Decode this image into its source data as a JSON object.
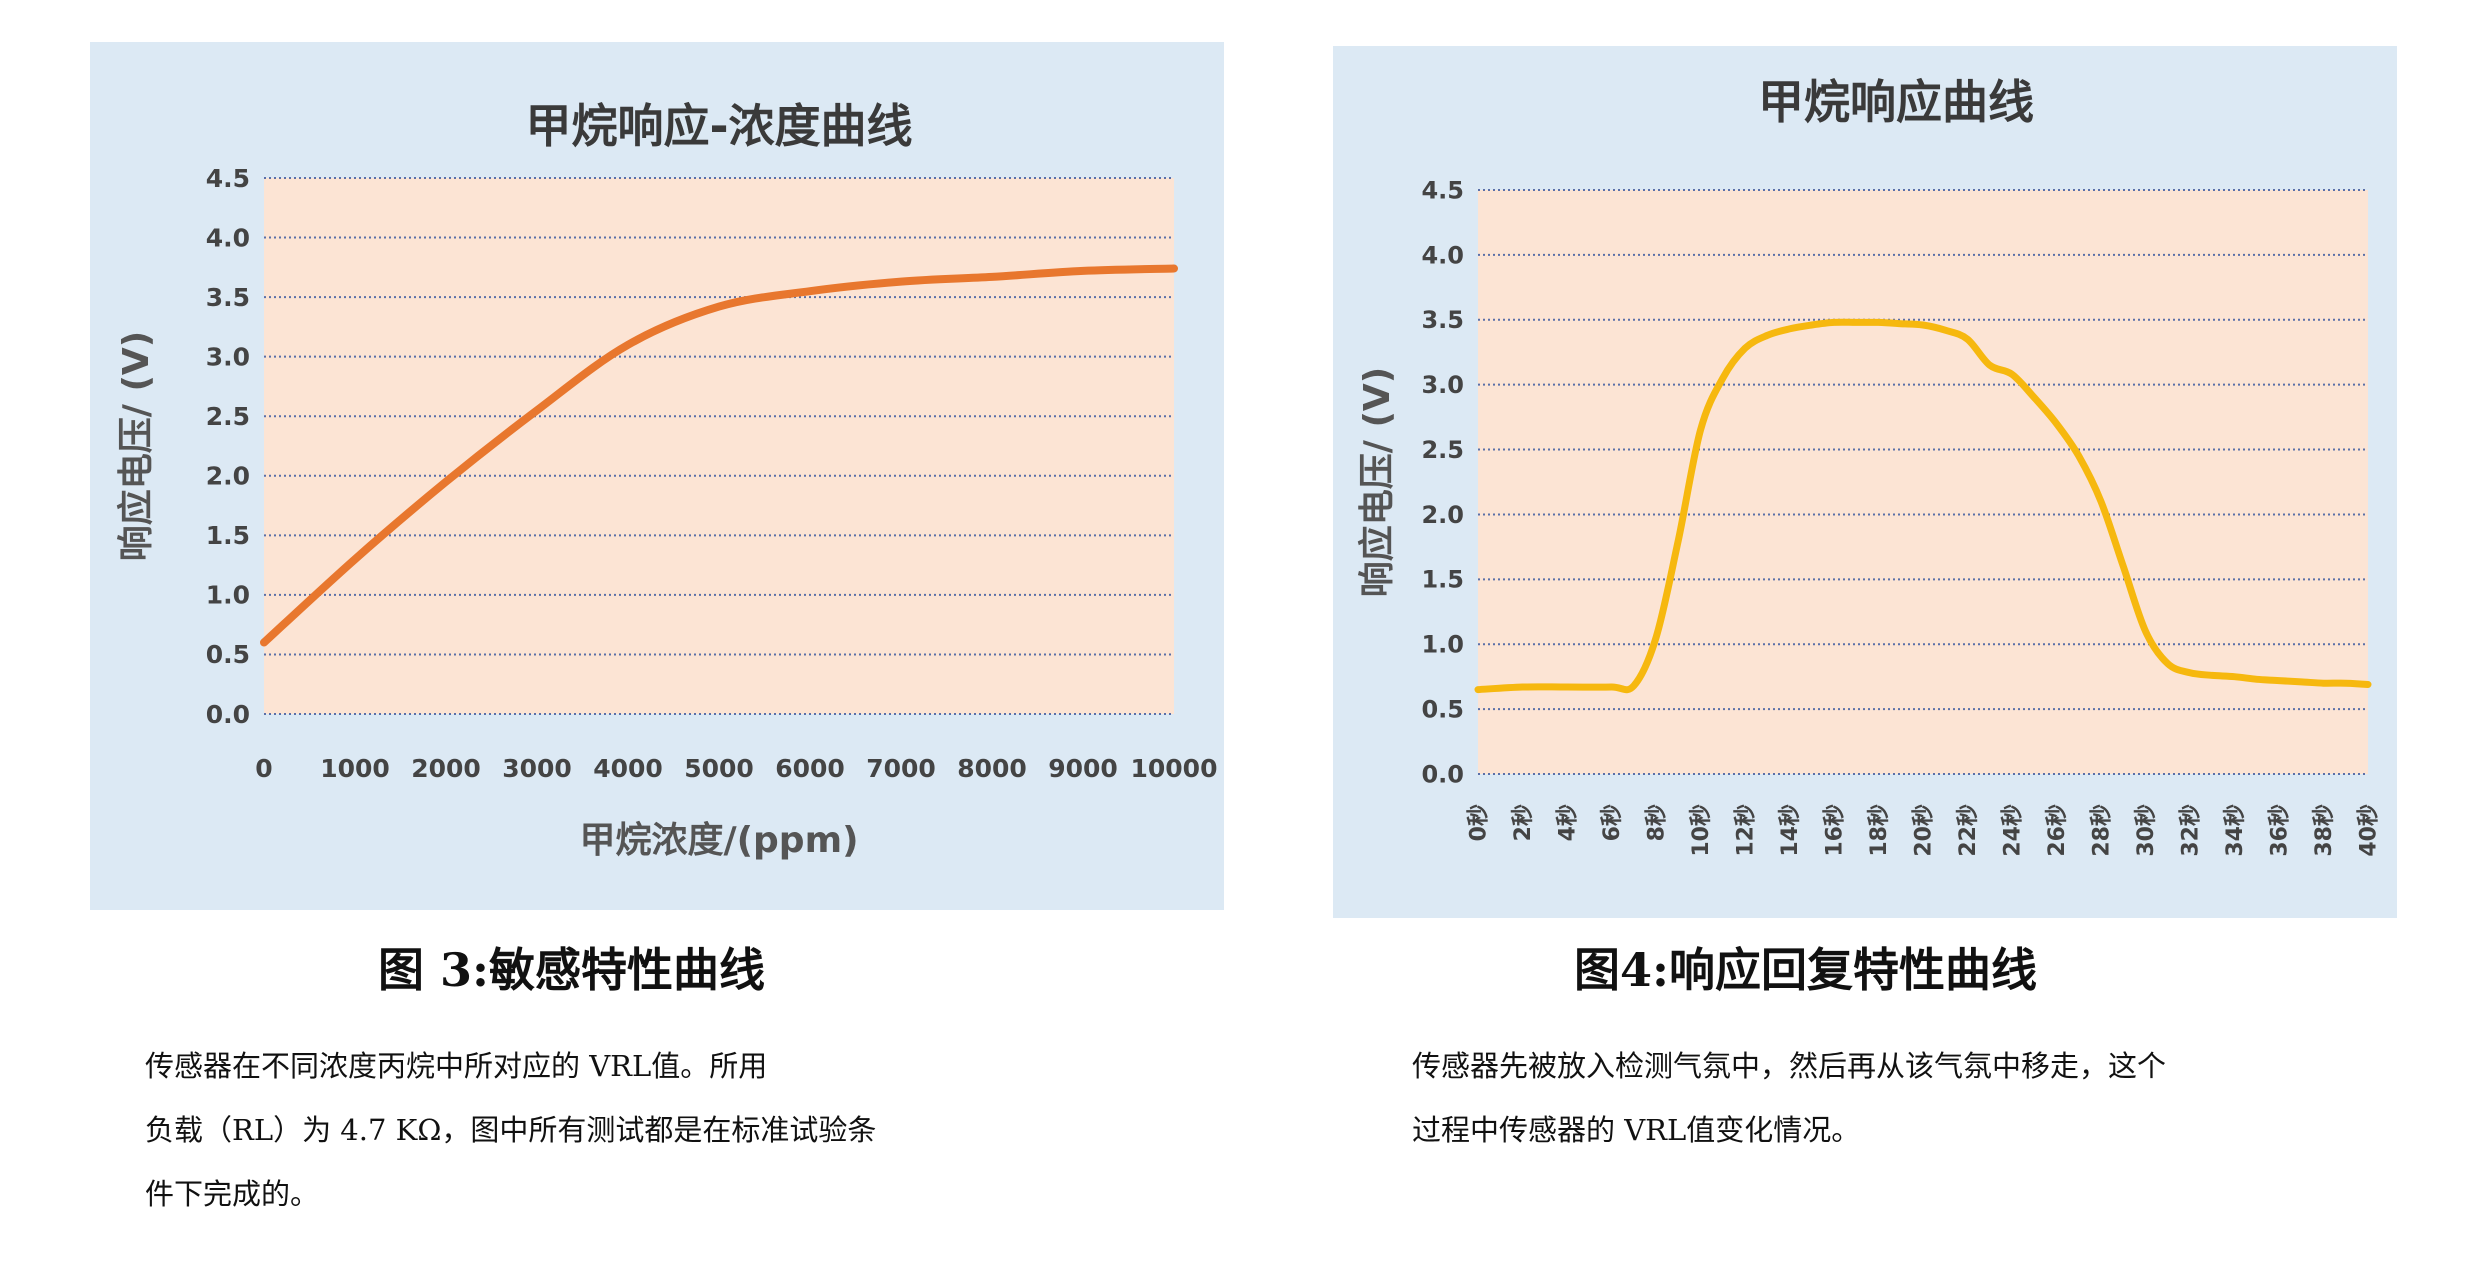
{
  "chart_data": [
    {
      "type": "line",
      "title": "甲烷响应-浓度曲线",
      "xlabel": "甲烷浓度/(ppm)",
      "ylabel": "响应电压/ (V)",
      "x_ticks": [
        "0",
        "1000",
        "2000",
        "3000",
        "4000",
        "5000",
        "6000",
        "7000",
        "8000",
        "9000",
        "10000"
      ],
      "y_ticks": [
        "0.0",
        "0.5",
        "1.0",
        "1.5",
        "2.0",
        "2.5",
        "3.0",
        "3.5",
        "4.0",
        "4.5"
      ],
      "xlim": [
        0,
        10000
      ],
      "ylim": [
        0,
        4.5
      ],
      "grid": "horizontal dotted",
      "series": [
        {
          "color": "#e8772e",
          "x": [
            0,
            1000,
            2000,
            3000,
            4000,
            5000,
            6000,
            7000,
            8000,
            9000,
            10000
          ],
          "y": [
            0.6,
            1.3,
            1.95,
            2.55,
            3.1,
            3.42,
            3.55,
            3.63,
            3.67,
            3.72,
            3.74
          ]
        }
      ]
    },
    {
      "type": "line",
      "title": "甲烷响应曲线",
      "xlabel": "",
      "ylabel": "响应电压/ (V)",
      "x_ticks": [
        "0秒",
        "2秒",
        "4秒",
        "6秒",
        "8秒",
        "10秒",
        "12秒",
        "14秒",
        "16秒",
        "18秒",
        "20秒",
        "22秒",
        "24秒",
        "26秒",
        "28秒",
        "30秒",
        "32秒",
        "34秒",
        "36秒",
        "38秒",
        "40秒"
      ],
      "y_ticks": [
        "0.0",
        "0.5",
        "1.0",
        "1.5",
        "2.0",
        "2.5",
        "3.0",
        "3.5",
        "4.0",
        "4.5"
      ],
      "xlim": [
        0,
        40
      ],
      "ylim": [
        0,
        4.5
      ],
      "grid": "horizontal dotted",
      "series": [
        {
          "color": "#f6b80f",
          "x": [
            0,
            2,
            4,
            6,
            7,
            8,
            9,
            10,
            11,
            12,
            13,
            14,
            15,
            16,
            17,
            18,
            19,
            20,
            21,
            22,
            23,
            24,
            25,
            26,
            27,
            28,
            29,
            30,
            31,
            32,
            33,
            34,
            35,
            36,
            37,
            38,
            39,
            40
          ],
          "y": [
            0.65,
            0.67,
            0.67,
            0.67,
            0.68,
            1.05,
            1.8,
            2.65,
            3.05,
            3.28,
            3.38,
            3.43,
            3.46,
            3.48,
            3.48,
            3.48,
            3.47,
            3.46,
            3.42,
            3.35,
            3.15,
            3.08,
            2.9,
            2.7,
            2.45,
            2.1,
            1.6,
            1.1,
            0.85,
            0.78,
            0.76,
            0.75,
            0.73,
            0.72,
            0.71,
            0.7,
            0.7,
            0.69
          ]
        }
      ]
    }
  ],
  "captions": {
    "left": "图 3:敏感特性曲线",
    "right": "图4:响应回复特性曲线"
  },
  "descriptions": {
    "left": [
      "传感器在不同浓度丙烷中所对应的 VRL值。所用",
      "负载（RL）为 4.7 KΩ，图中所有测试都是在标准试验条",
      "件下完成的。"
    ],
    "right": [
      "传感器先被放入检测气氛中，然后再从该气氛中移走，这个",
      "过程中传感器的 VRL值变化情况。"
    ]
  },
  "colors": {
    "panel_bg": "#dce9f4",
    "plot_bg": "#fce4d4",
    "grid": "#5a6fa8"
  }
}
